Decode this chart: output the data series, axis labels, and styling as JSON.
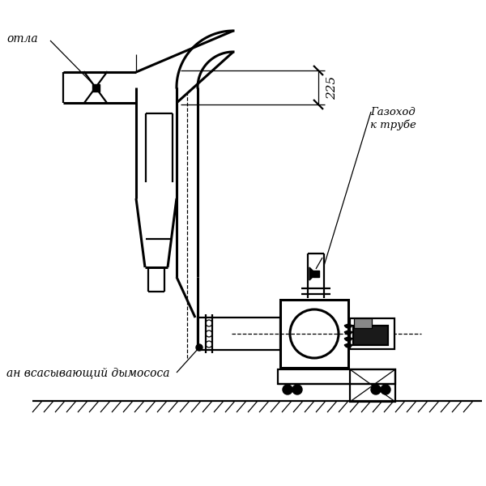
{
  "bg": "#ffffff",
  "lc": "#000000",
  "lw1": 0.9,
  "lw2": 1.6,
  "lw3": 2.2,
  "text_kotla": "отла",
  "text_gazokhod": "Газоход\nк трубе",
  "text_vsan": "ан всасывающий дымососа",
  "text_225": "225",
  "figsize": [
    6.0,
    6.0
  ],
  "dpi": 100
}
